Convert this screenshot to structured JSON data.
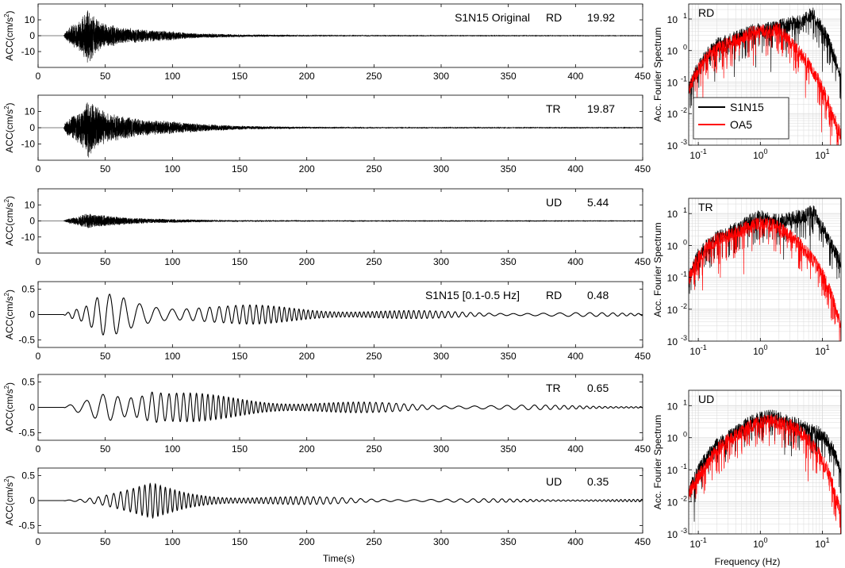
{
  "figure": {
    "x_axis_label": "Time(s)",
    "y_axis_label_prefix": "ACC(cm/s",
    "y_axis_label_exponent": "2",
    "y_axis_label_suffix": ")",
    "spectrum_x_label": "Frequency (Hz)",
    "spectrum_y_label": "Acc. Fourier Spectrum"
  },
  "colors": {
    "record": "#000000",
    "comparison": "#ff0000",
    "axis": "#000000",
    "grid": "#d9d9d9"
  },
  "chart_data": [
    {
      "type": "line",
      "id": "ts-rd-original",
      "title": "S1N15 Original",
      "component": "RD",
      "peak": "19.92",
      "xlim": [
        0,
        450
      ],
      "ylim": [
        -20,
        20
      ],
      "xticks": [
        0,
        50,
        100,
        150,
        200,
        250,
        300,
        350,
        400,
        450
      ],
      "yticks": [
        10,
        0,
        -10
      ],
      "envelope": [
        [
          0,
          0
        ],
        [
          19,
          0
        ],
        [
          20,
          2
        ],
        [
          25,
          7
        ],
        [
          30,
          9
        ],
        [
          35,
          15
        ],
        [
          37,
          20
        ],
        [
          40,
          15
        ],
        [
          45,
          10
        ],
        [
          50,
          8
        ],
        [
          60,
          6
        ],
        [
          70,
          5
        ],
        [
          80,
          4
        ],
        [
          90,
          3.5
        ],
        [
          100,
          3
        ],
        [
          110,
          2
        ],
        [
          120,
          1.5
        ],
        [
          150,
          0.8
        ],
        [
          200,
          0.4
        ],
        [
          250,
          0.2
        ],
        [
          300,
          0.15
        ],
        [
          450,
          0.1
        ]
      ],
      "signal": "broadband"
    },
    {
      "type": "line",
      "id": "ts-tr-original",
      "title": "",
      "component": "TR",
      "peak": "19.87",
      "xlim": [
        0,
        450
      ],
      "ylim": [
        -20,
        20
      ],
      "xticks": [
        0,
        50,
        100,
        150,
        200,
        250,
        300,
        350,
        400,
        450
      ],
      "yticks": [
        10,
        0,
        -10
      ],
      "envelope": [
        [
          0,
          0
        ],
        [
          19,
          0
        ],
        [
          20,
          3
        ],
        [
          25,
          8
        ],
        [
          30,
          10
        ],
        [
          35,
          14
        ],
        [
          38,
          20
        ],
        [
          42,
          15
        ],
        [
          48,
          11
        ],
        [
          55,
          9
        ],
        [
          65,
          7
        ],
        [
          80,
          5
        ],
        [
          90,
          4.5
        ],
        [
          100,
          4
        ],
        [
          120,
          2.5
        ],
        [
          150,
          1.2
        ],
        [
          200,
          0.5
        ],
        [
          250,
          0.3
        ],
        [
          450,
          0.15
        ]
      ],
      "signal": "broadband"
    },
    {
      "type": "line",
      "id": "ts-ud-original",
      "title": "",
      "component": "UD",
      "peak": "5.44",
      "xlim": [
        0,
        450
      ],
      "ylim": [
        -20,
        20
      ],
      "xticks": [
        0,
        50,
        100,
        150,
        200,
        250,
        300,
        350,
        400,
        450
      ],
      "yticks": [
        10,
        0,
        -10
      ],
      "envelope": [
        [
          0,
          0
        ],
        [
          19,
          0
        ],
        [
          22,
          1.5
        ],
        [
          30,
          3
        ],
        [
          37,
          5.4
        ],
        [
          45,
          4
        ],
        [
          55,
          3
        ],
        [
          70,
          2
        ],
        [
          90,
          1.4
        ],
        [
          110,
          1
        ],
        [
          130,
          0.6
        ],
        [
          150,
          0.4
        ],
        [
          200,
          0.2
        ],
        [
          450,
          0.1
        ]
      ],
      "signal": "broadband"
    },
    {
      "type": "line",
      "id": "ts-rd-filtered",
      "title": "S1N15 [0.1-0.5 Hz]",
      "component": "RD",
      "peak": "0.48",
      "xlim": [
        0,
        450
      ],
      "ylim": [
        -0.65,
        0.65
      ],
      "xticks": [
        0,
        50,
        100,
        150,
        200,
        250,
        300,
        350,
        400,
        450
      ],
      "yticks": [
        0.5,
        0,
        -0.5
      ],
      "envelope": [
        [
          0,
          0
        ],
        [
          19,
          0
        ],
        [
          20,
          0.02
        ],
        [
          25,
          0.08
        ],
        [
          35,
          0.15
        ],
        [
          42,
          0.3
        ],
        [
          48,
          0.42
        ],
        [
          55,
          0.45
        ],
        [
          60,
          0.45
        ],
        [
          70,
          0.38
        ],
        [
          80,
          0.34
        ],
        [
          90,
          0.3
        ],
        [
          100,
          0.27
        ],
        [
          120,
          0.24
        ],
        [
          140,
          0.2
        ],
        [
          160,
          0.19
        ],
        [
          180,
          0.17
        ],
        [
          200,
          0.15
        ],
        [
          250,
          0.1
        ],
        [
          300,
          0.07
        ],
        [
          350,
          0.05
        ],
        [
          400,
          0.04
        ],
        [
          450,
          0.03
        ]
      ],
      "signal": "narrowband",
      "freq_range": [
        0.1,
        0.5
      ]
    },
    {
      "type": "line",
      "id": "ts-tr-filtered",
      "title": "",
      "component": "TR",
      "peak": "0.65",
      "xlim": [
        0,
        450
      ],
      "ylim": [
        -0.65,
        0.65
      ],
      "xticks": [
        0,
        50,
        100,
        150,
        200,
        250,
        300,
        350,
        400,
        450
      ],
      "yticks": [
        0.5,
        0,
        -0.5
      ],
      "envelope": [
        [
          0,
          0
        ],
        [
          19,
          0
        ],
        [
          20,
          0.02
        ],
        [
          25,
          0.08
        ],
        [
          30,
          0.15
        ],
        [
          35,
          0.2
        ],
        [
          40,
          0.35
        ],
        [
          45,
          0.5
        ],
        [
          52,
          0.65
        ],
        [
          58,
          0.55
        ],
        [
          65,
          0.45
        ],
        [
          75,
          0.42
        ],
        [
          85,
          0.5
        ],
        [
          95,
          0.35
        ],
        [
          110,
          0.3
        ],
        [
          130,
          0.25
        ],
        [
          160,
          0.2
        ],
        [
          200,
          0.14
        ],
        [
          250,
          0.1
        ],
        [
          300,
          0.07
        ],
        [
          350,
          0.05
        ],
        [
          400,
          0.04
        ],
        [
          450,
          0.03
        ]
      ],
      "signal": "narrowband",
      "freq_range": [
        0.1,
        0.5
      ]
    },
    {
      "type": "line",
      "id": "ts-ud-filtered",
      "title": "",
      "component": "UD",
      "peak": "0.35",
      "xlim": [
        0,
        450
      ],
      "ylim": [
        -0.65,
        0.65
      ],
      "xticks": [
        0,
        50,
        100,
        150,
        200,
        250,
        300,
        350,
        400,
        450
      ],
      "yticks": [
        0.5,
        0,
        -0.5
      ],
      "envelope": [
        [
          0,
          0
        ],
        [
          19,
          0
        ],
        [
          20,
          0.02
        ],
        [
          30,
          0.05
        ],
        [
          40,
          0.1
        ],
        [
          55,
          0.18
        ],
        [
          70,
          0.25
        ],
        [
          85,
          0.35
        ],
        [
          95,
          0.28
        ],
        [
          110,
          0.2
        ],
        [
          130,
          0.15
        ],
        [
          150,
          0.12
        ],
        [
          200,
          0.08
        ],
        [
          250,
          0.05
        ],
        [
          300,
          0.04
        ],
        [
          450,
          0.025
        ]
      ],
      "signal": "narrowband",
      "freq_range": [
        0.1,
        0.5
      ]
    },
    {
      "type": "line",
      "id": "spectrum-rd",
      "scale": "log-log",
      "grid": true,
      "component": "RD",
      "xlim": [
        0.07,
        20
      ],
      "ylim": [
        0.001,
        30
      ],
      "xticks": [
        0.1,
        1,
        10
      ],
      "yticks": [
        10,
        1,
        0.1,
        0.01,
        0.001
      ],
      "legend": {
        "placement": "lower-left",
        "entries": [
          "S1N15",
          "OA5"
        ]
      },
      "series": [
        {
          "name": "S1N15",
          "color": "#000000",
          "points": [
            [
              0.07,
              0.06
            ],
            [
              0.08,
              0.12
            ],
            [
              0.1,
              0.3
            ],
            [
              0.15,
              0.9
            ],
            [
              0.2,
              1.5
            ],
            [
              0.3,
              2
            ],
            [
              0.5,
              3
            ],
            [
              0.7,
              4
            ],
            [
              1,
              4.5
            ],
            [
              1.5,
              5
            ],
            [
              2,
              6
            ],
            [
              3,
              7
            ],
            [
              4,
              8
            ],
            [
              5,
              9
            ],
            [
              6,
              12
            ],
            [
              7,
              15
            ],
            [
              8,
              10
            ],
            [
              10,
              5
            ],
            [
              12,
              2.5
            ],
            [
              15,
              0.8
            ],
            [
              20,
              0.15
            ]
          ]
        },
        {
          "name": "OA5",
          "color": "#ff0000",
          "points": [
            [
              0.07,
              0.06
            ],
            [
              0.08,
              0.1
            ],
            [
              0.1,
              0.25
            ],
            [
              0.15,
              0.8
            ],
            [
              0.2,
              1.2
            ],
            [
              0.3,
              1.6
            ],
            [
              0.5,
              2.5
            ],
            [
              0.7,
              3.5
            ],
            [
              1,
              4
            ],
            [
              1.5,
              3.8
            ],
            [
              2,
              5
            ],
            [
              3,
              2
            ],
            [
              4,
              1
            ],
            [
              5,
              0.6
            ],
            [
              6,
              0.4
            ],
            [
              8,
              0.15
            ],
            [
              10,
              0.06
            ],
            [
              12,
              0.03
            ],
            [
              15,
              0.008
            ],
            [
              20,
              0.002
            ]
          ]
        }
      ]
    },
    {
      "type": "line",
      "id": "spectrum-tr",
      "scale": "log-log",
      "grid": true,
      "component": "TR",
      "xlim": [
        0.07,
        20
      ],
      "ylim": [
        0.001,
        30
      ],
      "xticks": [
        0.1,
        1,
        10
      ],
      "yticks": [
        10,
        1,
        0.1,
        0.01,
        0.001
      ],
      "series": [
        {
          "name": "S1N15",
          "color": "#000000",
          "points": [
            [
              0.07,
              0.08
            ],
            [
              0.08,
              0.2
            ],
            [
              0.1,
              0.5
            ],
            [
              0.15,
              1.2
            ],
            [
              0.2,
              1.8
            ],
            [
              0.3,
              2.5
            ],
            [
              0.5,
              4
            ],
            [
              0.7,
              6
            ],
            [
              1,
              8
            ],
            [
              1.5,
              6
            ],
            [
              2,
              6
            ],
            [
              3,
              7
            ],
            [
              4,
              8
            ],
            [
              5,
              8
            ],
            [
              6,
              10
            ],
            [
              7,
              12
            ],
            [
              8,
              8
            ],
            [
              10,
              4
            ],
            [
              12,
              2
            ],
            [
              15,
              0.8
            ],
            [
              20,
              0.3
            ]
          ]
        },
        {
          "name": "OA5",
          "color": "#ff0000",
          "points": [
            [
              0.07,
              0.08
            ],
            [
              0.08,
              0.18
            ],
            [
              0.1,
              0.4
            ],
            [
              0.15,
              1
            ],
            [
              0.2,
              1.5
            ],
            [
              0.3,
              2
            ],
            [
              0.5,
              3
            ],
            [
              0.7,
              4
            ],
            [
              1,
              5
            ],
            [
              1.5,
              4.5
            ],
            [
              2,
              3.5
            ],
            [
              3,
              2
            ],
            [
              4,
              1.2
            ],
            [
              5,
              0.8
            ],
            [
              6,
              0.5
            ],
            [
              8,
              0.25
            ],
            [
              10,
              0.12
            ],
            [
              12,
              0.06
            ],
            [
              15,
              0.02
            ],
            [
              20,
              0.003
            ]
          ]
        }
      ]
    },
    {
      "type": "line",
      "id": "spectrum-ud",
      "scale": "log-log",
      "grid": true,
      "component": "UD",
      "xlim": [
        0.07,
        20
      ],
      "ylim": [
        0.001,
        30
      ],
      "xticks": [
        0.1,
        1,
        10
      ],
      "yticks": [
        10,
        1,
        0.1,
        0.01,
        0.001
      ],
      "series": [
        {
          "name": "S1N15",
          "color": "#000000",
          "points": [
            [
              0.07,
              0.02
            ],
            [
              0.08,
              0.04
            ],
            [
              0.1,
              0.1
            ],
            [
              0.15,
              0.3
            ],
            [
              0.2,
              0.6
            ],
            [
              0.3,
              1
            ],
            [
              0.5,
              2
            ],
            [
              0.7,
              3
            ],
            [
              1,
              4
            ],
            [
              1.5,
              4.5
            ],
            [
              2,
              4
            ],
            [
              3,
              3
            ],
            [
              4,
              2.5
            ],
            [
              5,
              2
            ],
            [
              6,
              1.8
            ],
            [
              8,
              1.5
            ],
            [
              10,
              1.2
            ],
            [
              12,
              0.8
            ],
            [
              15,
              0.4
            ],
            [
              20,
              0.1
            ]
          ]
        },
        {
          "name": "OA5",
          "color": "#ff0000",
          "points": [
            [
              0.07,
              0.015
            ],
            [
              0.08,
              0.03
            ],
            [
              0.1,
              0.06
            ],
            [
              0.15,
              0.2
            ],
            [
              0.2,
              0.4
            ],
            [
              0.3,
              0.8
            ],
            [
              0.5,
              1.5
            ],
            [
              0.7,
              2.2
            ],
            [
              1,
              3
            ],
            [
              1.5,
              3.5
            ],
            [
              2,
              3
            ],
            [
              3,
              2.5
            ],
            [
              4,
              1.8
            ],
            [
              5,
              1.2
            ],
            [
              6,
              0.8
            ],
            [
              8,
              0.4
            ],
            [
              10,
              0.2
            ],
            [
              12,
              0.1
            ],
            [
              15,
              0.03
            ],
            [
              20,
              0.004
            ]
          ]
        }
      ]
    }
  ]
}
